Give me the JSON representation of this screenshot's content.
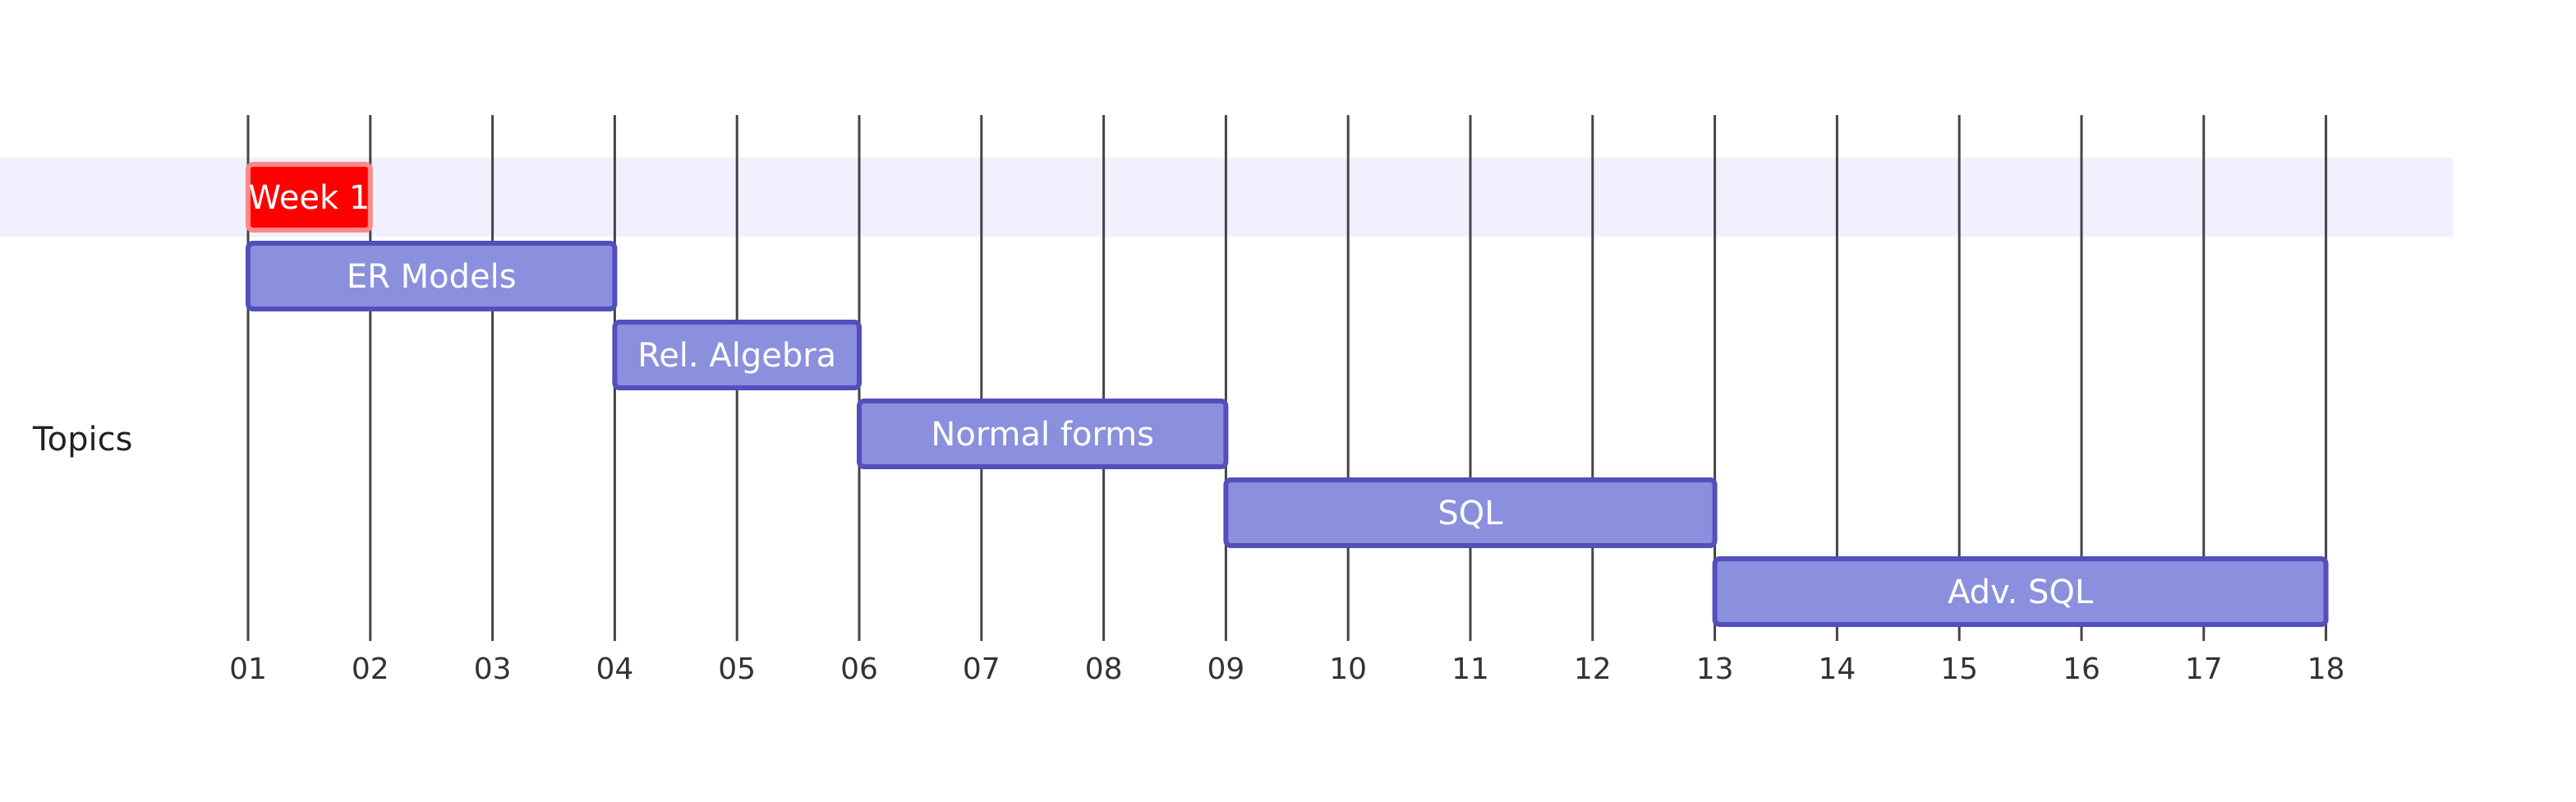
{
  "chart_data": {
    "type": "gantt",
    "section": "Topics",
    "x_ticks": [
      "01",
      "02",
      "03",
      "04",
      "05",
      "06",
      "07",
      "08",
      "09",
      "10",
      "11",
      "12",
      "13",
      "14",
      "15",
      "16",
      "17",
      "18"
    ],
    "xlim": [
      1,
      19
    ],
    "tasks": [
      {
        "label": "Week 1",
        "start": 1,
        "end": 2,
        "milestone_style": true
      },
      {
        "label": "ER Models",
        "start": 1,
        "end": 4
      },
      {
        "label": "Rel. Algebra",
        "start": 4,
        "end": 6
      },
      {
        "label": "Normal forms",
        "start": 6,
        "end": 9
      },
      {
        "label": "SQL",
        "start": 9,
        "end": 13
      },
      {
        "label": "Adv. SQL",
        "start": 13,
        "end": 18
      }
    ],
    "colors": {
      "task_fill": "#8a90dd",
      "task_stroke": "#534fbc",
      "active_fill": "#ff0000",
      "active_stroke": "#ff8888",
      "section_band": "#f0f0ff",
      "grid": "#444444"
    }
  }
}
